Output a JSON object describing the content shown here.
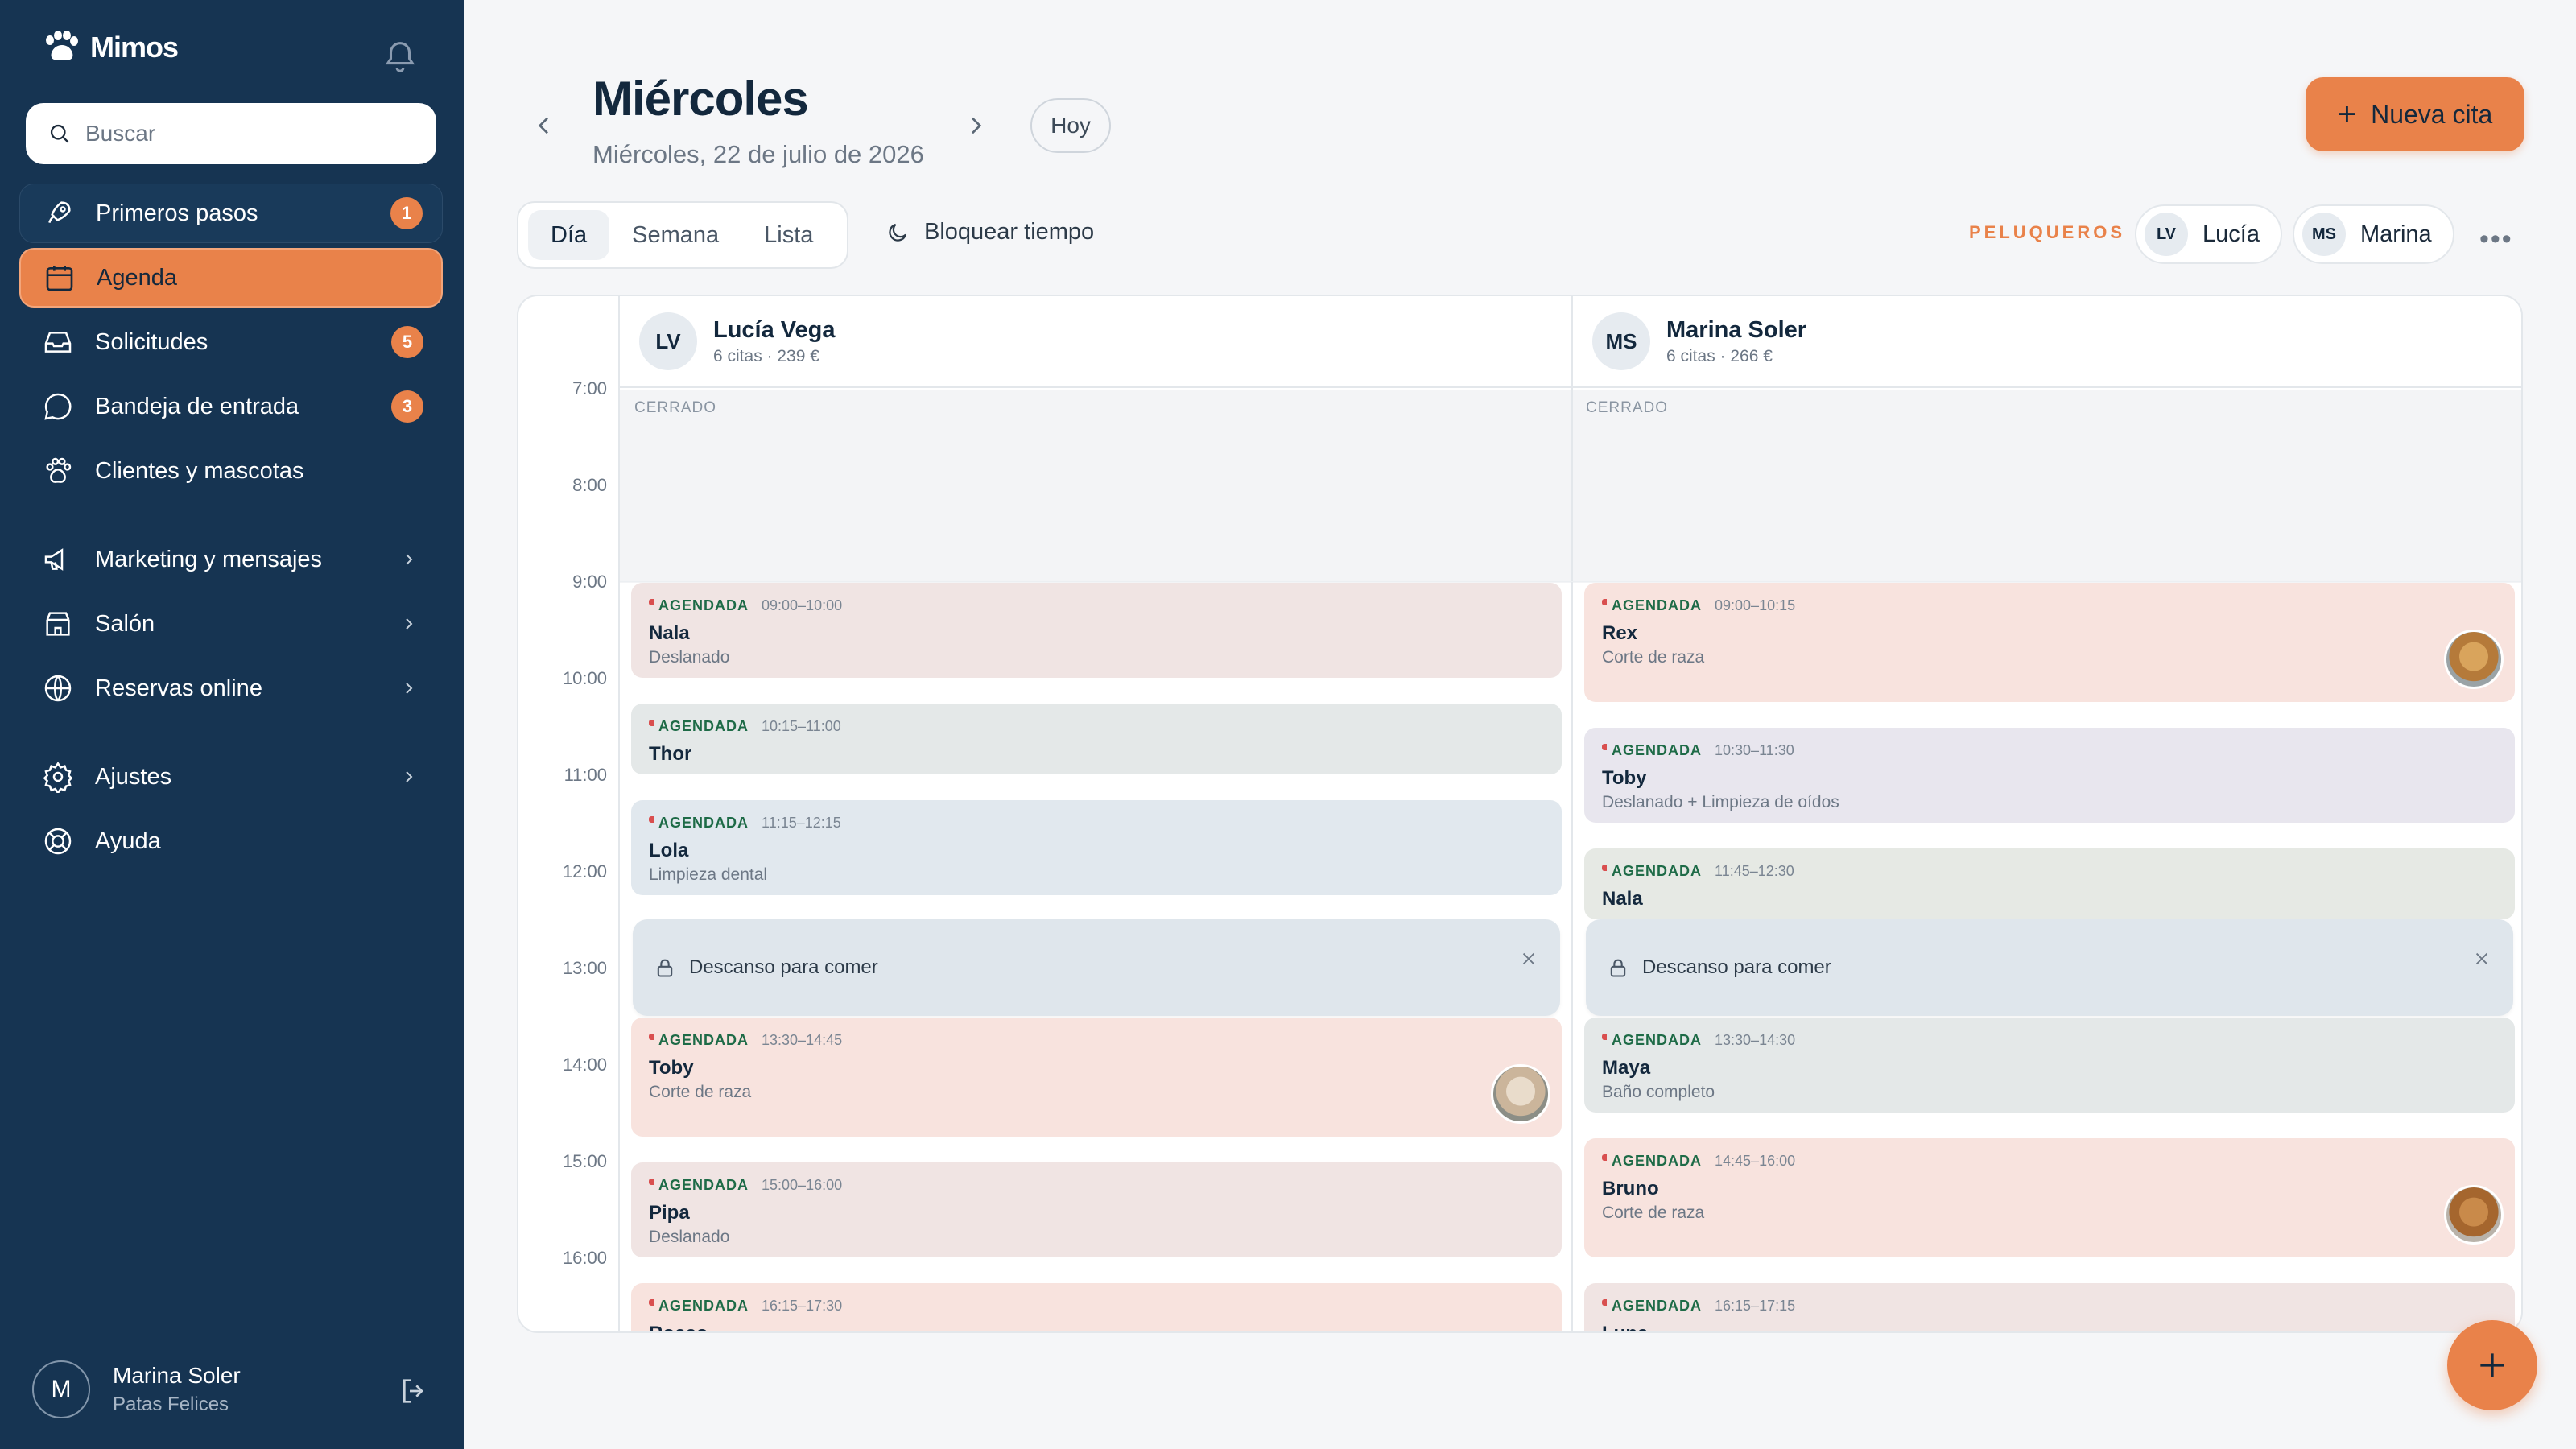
{
  "brand": {
    "name": "Mimos"
  },
  "search": {
    "placeholder": "Buscar"
  },
  "sidebar": {
    "items": [
      {
        "label": "Primeros pasos",
        "badge": "1"
      },
      {
        "label": "Agenda"
      },
      {
        "label": "Solicitudes",
        "badge": "5"
      },
      {
        "label": "Bandeja de entrada",
        "badge": "3"
      },
      {
        "label": "Clientes y mascotas"
      },
      {
        "label": "Marketing y mensajes"
      },
      {
        "label": "Salón"
      },
      {
        "label": "Reservas online"
      },
      {
        "label": "Ajustes"
      },
      {
        "label": "Ayuda"
      }
    ]
  },
  "user": {
    "initial": "M",
    "name": "Marina Soler",
    "org": "Patas Felices"
  },
  "header": {
    "title": "Miércoles",
    "date": "Miércoles, 22 de julio de 2026",
    "today_label": "Hoy",
    "new_label": "Nueva cita"
  },
  "views": [
    "Día",
    "Semana",
    "Lista"
  ],
  "block_time_label": "Bloquear tiempo",
  "groomers_label": "PELUQUEROS",
  "groomer_chips": [
    {
      "initials": "LV",
      "name": "Lucía"
    },
    {
      "initials": "MS",
      "name": "Marina"
    }
  ],
  "hours": [
    "7:00",
    "8:00",
    "9:00",
    "10:00",
    "11:00",
    "12:00",
    "13:00",
    "14:00",
    "15:00",
    "16:00"
  ],
  "closed_label": "CERRADO",
  "columns": [
    {
      "initials": "LV",
      "name": "Lucía Vega",
      "stats": "6 citas · 239 €",
      "appointments": [
        {
          "status": "AGENDADA",
          "time": "09:00–10:00",
          "pet": "Nala",
          "service": "Deslanado"
        },
        {
          "status": "AGENDADA",
          "time": "10:15–11:00",
          "pet": "Thor",
          "service": ""
        },
        {
          "status": "AGENDADA",
          "time": "11:15–12:15",
          "pet": "Lola",
          "service": "Limpieza dental"
        },
        {
          "status": "AGENDADA",
          "time": "13:30–14:45",
          "pet": "Toby",
          "service": "Corte de raza"
        },
        {
          "status": "AGENDADA",
          "time": "15:00–16:00",
          "pet": "Pipa",
          "service": "Deslanado"
        },
        {
          "status": "AGENDADA",
          "time": "16:15–17:30",
          "pet": "Rocco",
          "service": ""
        }
      ],
      "break_label": "Descanso para comer"
    },
    {
      "initials": "MS",
      "name": "Marina Soler",
      "stats": "6 citas · 266 €",
      "appointments": [
        {
          "status": "AGENDADA",
          "time": "09:00–10:15",
          "pet": "Rex",
          "service": "Corte de raza"
        },
        {
          "status": "AGENDADA",
          "time": "10:30–11:30",
          "pet": "Toby",
          "service": "Deslanado + Limpieza de oídos"
        },
        {
          "status": "AGENDADA",
          "time": "11:45–12:30",
          "pet": "Nala",
          "service": ""
        },
        {
          "status": "AGENDADA",
          "time": "13:30–14:30",
          "pet": "Maya",
          "service": "Baño completo"
        },
        {
          "status": "AGENDADA",
          "time": "14:45–16:00",
          "pet": "Bruno",
          "service": "Corte de raza"
        },
        {
          "status": "AGENDADA",
          "time": "16:15–17:15",
          "pet": "Luna",
          "service": ""
        }
      ],
      "break_label": "Descanso para comer"
    }
  ],
  "colors": {
    "accent": "#e9824a",
    "sidebar": "#163452",
    "status_green": "#1e6b47"
  }
}
